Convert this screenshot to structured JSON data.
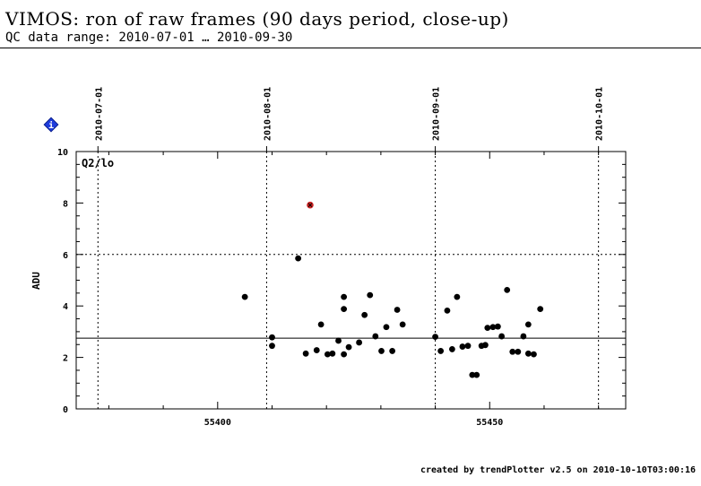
{
  "header": {
    "title": "VIMOS: ron of raw frames (90 days period, close-up)",
    "subtitle": "QC data range: 2010-07-01 … 2010-09-30"
  },
  "footer": "created by trendPlotter v2.5 on 2010-10-10T03:00:16",
  "info_icon_label": "i",
  "colors": {
    "points": "#000000",
    "outlier": "#cc2222",
    "info": "#1e3cdc"
  },
  "chart_data": {
    "type": "scatter",
    "panel_label": "Q2/lo",
    "ylabel": "ADU",
    "xlim": [
      55374,
      55475
    ],
    "ylim": [
      0,
      10
    ],
    "x_ticks": [
      55400,
      55450
    ],
    "y_ticks": [
      0,
      2,
      4,
      6,
      8,
      10
    ],
    "date_ticks": [
      {
        "label": "2010-07-01",
        "mjd": 55378
      },
      {
        "label": "2010-08-01",
        "mjd": 55409
      },
      {
        "label": "2010-09-01",
        "mjd": 55440
      },
      {
        "label": "2010-10-01",
        "mjd": 55470
      }
    ],
    "reference_line": 2.75,
    "threshold_line": 6.0,
    "points": [
      [
        55405.0,
        4.35
      ],
      [
        55410.0,
        2.78
      ],
      [
        55410.0,
        2.45
      ],
      [
        55414.8,
        5.85
      ],
      [
        55416.2,
        2.15
      ],
      [
        55418.2,
        2.28
      ],
      [
        55419.0,
        3.28
      ],
      [
        55420.2,
        2.12
      ],
      [
        55421.1,
        2.15
      ],
      [
        55422.2,
        2.65
      ],
      [
        55423.2,
        4.35
      ],
      [
        55423.2,
        3.88
      ],
      [
        55423.2,
        2.12
      ],
      [
        55424.1,
        2.4
      ],
      [
        55426.0,
        2.58
      ],
      [
        55427.0,
        3.65
      ],
      [
        55428.0,
        4.42
      ],
      [
        55429.0,
        2.82
      ],
      [
        55430.1,
        2.25
      ],
      [
        55431.0,
        3.18
      ],
      [
        55432.1,
        2.25
      ],
      [
        55433.0,
        3.85
      ],
      [
        55434.0,
        3.28
      ],
      [
        55440.0,
        2.8
      ],
      [
        55441.0,
        2.25
      ],
      [
        55442.2,
        3.82
      ],
      [
        55443.1,
        2.32
      ],
      [
        55444.0,
        4.35
      ],
      [
        55445.0,
        2.42
      ],
      [
        55446.0,
        2.45
      ],
      [
        55446.8,
        1.32
      ],
      [
        55447.6,
        1.32
      ],
      [
        55448.5,
        2.45
      ],
      [
        55449.2,
        2.48
      ],
      [
        55449.6,
        3.15
      ],
      [
        55450.6,
        3.18
      ],
      [
        55451.5,
        3.2
      ],
      [
        55452.2,
        2.82
      ],
      [
        55453.2,
        4.62
      ],
      [
        55454.2,
        2.22
      ],
      [
        55455.2,
        2.22
      ],
      [
        55456.2,
        2.82
      ],
      [
        55457.1,
        3.28
      ],
      [
        55457.1,
        2.15
      ],
      [
        55458.1,
        2.12
      ],
      [
        55459.3,
        3.88
      ]
    ],
    "outliers": [
      [
        55417.0,
        7.92
      ]
    ]
  }
}
